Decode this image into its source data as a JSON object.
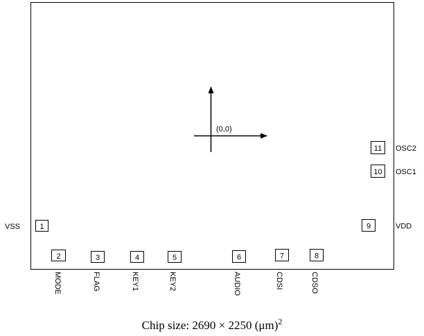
{
  "origin": {
    "label": "(0,0)"
  },
  "pads": [
    {
      "num": "1",
      "label": "VSS"
    },
    {
      "num": "2",
      "label": "MODE"
    },
    {
      "num": "3",
      "label": "FLAG"
    },
    {
      "num": "4",
      "label": "KEY1"
    },
    {
      "num": "5",
      "label": "KEY2"
    },
    {
      "num": "6",
      "label": "AUDIO"
    },
    {
      "num": "7",
      "label": "CDSI"
    },
    {
      "num": "8",
      "label": "CDSO"
    },
    {
      "num": "9",
      "label": "VDD"
    },
    {
      "num": "10",
      "label": "OSC1"
    },
    {
      "num": "11",
      "label": "OSC2"
    }
  ],
  "caption": {
    "prefix": "Chip size: 2690 × 2250 (μm)",
    "exponent": "2"
  }
}
